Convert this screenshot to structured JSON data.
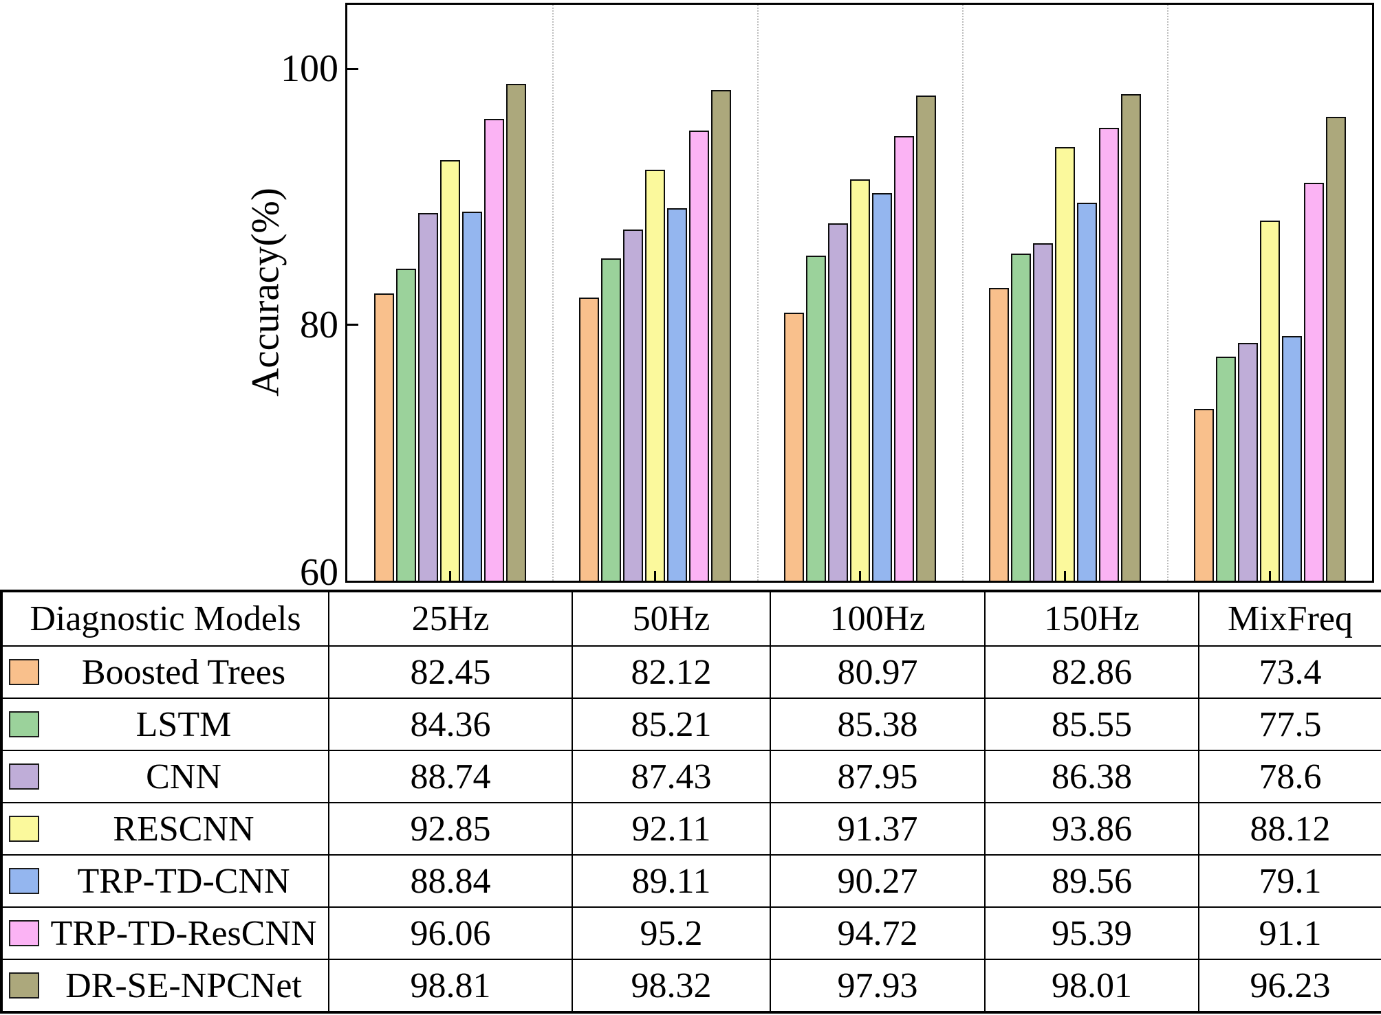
{
  "chart_data": {
    "type": "bar",
    "title": "",
    "ylabel": "Accuracy(%)",
    "xlabel": "",
    "categories": [
      "25Hz",
      "50Hz",
      "100Hz",
      "150Hz",
      "MixFreq"
    ],
    "series": [
      {
        "name": "Boosted Trees",
        "color": "#F9C08C",
        "values": [
          82.45,
          82.12,
          80.97,
          82.86,
          73.4
        ]
      },
      {
        "name": "LSTM",
        "color": "#9BD29B",
        "values": [
          84.36,
          85.21,
          85.38,
          85.55,
          77.5
        ]
      },
      {
        "name": "CNN",
        "color": "#BFADD8",
        "values": [
          88.74,
          87.43,
          87.95,
          86.38,
          78.6
        ]
      },
      {
        "name": "RESCNN",
        "color": "#FBF99C",
        "values": [
          92.85,
          92.11,
          91.37,
          93.86,
          88.12
        ]
      },
      {
        "name": "TRP-TD-CNN",
        "color": "#94B6EF",
        "values": [
          88.84,
          89.11,
          90.27,
          89.56,
          79.1
        ]
      },
      {
        "name": "TRP-TD-ResCNN",
        "color": "#FBB3F4",
        "values": [
          96.06,
          95.2,
          94.72,
          95.39,
          91.1
        ]
      },
      {
        "name": "DR-SE-NPCNet",
        "color": "#ACA87C",
        "values": [
          98.81,
          98.32,
          97.93,
          98.01,
          96.23
        ]
      }
    ],
    "ylim": [
      60,
      105
    ],
    "yticks": [
      100,
      80,
      60
    ],
    "bar_edge_color": "#000000",
    "group_separator_color": "#bdbdbd",
    "grid": "dotted vertical separators between frequency groups",
    "legend_position": "table-below-chart"
  },
  "table": {
    "header": [
      "Diagnostic Models",
      "25Hz",
      "50Hz",
      "100Hz",
      "150Hz",
      "MixFreq"
    ],
    "rows": [
      {
        "label": "Boosted Trees",
        "swatch_color": "#F9C08C",
        "values": [
          "82.45",
          "82.12",
          "80.97",
          "82.86",
          "73.4"
        ]
      },
      {
        "label": "LSTM",
        "swatch_color": "#9BD29B",
        "values": [
          "84.36",
          "85.21",
          "85.38",
          "85.55",
          "77.5"
        ]
      },
      {
        "label": "CNN",
        "swatch_color": "#BFADD8",
        "values": [
          "88.74",
          "87.43",
          "87.95",
          "86.38",
          "78.6"
        ]
      },
      {
        "label": "RESCNN",
        "swatch_color": "#FBF99C",
        "values": [
          "92.85",
          "92.11",
          "91.37",
          "93.86",
          "88.12"
        ]
      },
      {
        "label": "TRP-TD-CNN",
        "swatch_color": "#94B6EF",
        "values": [
          "88.84",
          "89.11",
          "90.27",
          "89.56",
          "79.1"
        ]
      },
      {
        "label": "TRP-TD-ResCNN",
        "swatch_color": "#FBB3F4",
        "values": [
          "96.06",
          "95.2",
          "94.72",
          "95.39",
          "91.1"
        ]
      },
      {
        "label": "DR-SE-NPCNet",
        "swatch_color": "#ACA87C",
        "values": [
          "98.81",
          "98.32",
          "97.93",
          "98.01",
          "96.23"
        ]
      }
    ]
  }
}
